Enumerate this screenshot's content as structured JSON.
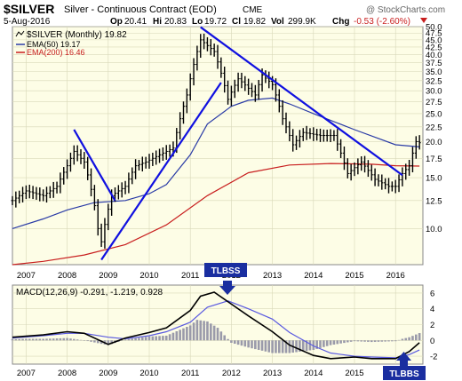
{
  "header": {
    "symbol": "$SILVER",
    "description": "Silver - Continuous Contract (EOD)",
    "exchange": "CME",
    "watermark": "@ StockCharts.com",
    "date": "5-Aug-2016",
    "ohlc": {
      "open_label": "Op",
      "open": "20.41",
      "high_label": "Hi",
      "high": "20.83",
      "low_label": "Lo",
      "low": "19.72",
      "close_label": "Cl",
      "close": "19.82",
      "vol_label": "Vol",
      "vol": "299.9K",
      "chg_label": "Chg",
      "chg": "-0.53 (-2.60%)"
    }
  },
  "colors": {
    "price": "#000000",
    "ema50": "#2a3ba6",
    "ema200": "#c81e1e",
    "trendline": "#1010e0",
    "macd": "#000000",
    "signal": "#5a5ae0",
    "histogram": "#9a9aaa",
    "panel_bg": "#fdfde6",
    "grid": "#d8d8b8",
    "annotation_bg": "#1a2ea0",
    "chg_negative": "#c81e1e"
  },
  "annotations": [
    {
      "label": "TLBSS",
      "target": "macd-peak-2011"
    },
    {
      "label": "TLBBS",
      "target": "macd-low-2016"
    }
  ],
  "chart_data": [
    {
      "type": "line",
      "title": "$SILVER (Monthly) 19.82",
      "interval": "Monthly",
      "y_scale": "log",
      "ylim": [
        7.5,
        50.0
      ],
      "x_ticks": [
        "2007",
        "2008",
        "2009",
        "2010",
        "2011",
        "2012",
        "2013",
        "2014",
        "2015",
        "2016"
      ],
      "y_ticks": [
        "10.0",
        "12.5",
        "15.0",
        "17.5",
        "20.0",
        "22.5",
        "25.0",
        "27.5",
        "30.0",
        "32.5",
        "35.0",
        "37.5",
        "40.0",
        "42.5",
        "45.0",
        "47.5",
        "50.0"
      ],
      "legend_position": "top-left",
      "grid": true,
      "series": [
        {
          "name": "$SILVER (Monthly) 19.82",
          "style": "ohlc-bars",
          "x": [
            "2006-09",
            "2007-01",
            "2007-06",
            "2007-10",
            "2008-01",
            "2008-03",
            "2008-06",
            "2008-09",
            "2008-10",
            "2008-11",
            "2009-02",
            "2009-06",
            "2009-09",
            "2009-12",
            "2010-04",
            "2010-08",
            "2010-12",
            "2011-04",
            "2011-08",
            "2011-12",
            "2012-03",
            "2012-08",
            "2012-10",
            "2013-01",
            "2013-04",
            "2013-07",
            "2013-10",
            "2014-03",
            "2014-07",
            "2014-11",
            "2015-03",
            "2015-07",
            "2015-11",
            "2016-01",
            "2016-03",
            "2016-05",
            "2016-07",
            "2016-08"
          ],
          "values": [
            12.5,
            13.5,
            13.0,
            14.0,
            16.5,
            18.5,
            17.0,
            12.0,
            10.0,
            9.0,
            13.0,
            14.0,
            16.5,
            17.0,
            18.0,
            19.0,
            29.0,
            45.0,
            41.0,
            28.0,
            33.0,
            29.0,
            34.0,
            31.5,
            24.0,
            19.5,
            21.5,
            21.0,
            21.0,
            15.5,
            17.0,
            14.8,
            14.0,
            14.0,
            15.5,
            16.5,
            20.0,
            19.82
          ]
        },
        {
          "name": "EMA(50) 19.17",
          "x": [
            "2006-09",
            "2007-06",
            "2008-01",
            "2008-09",
            "2009-06",
            "2010-01",
            "2010-06",
            "2011-01",
            "2011-06",
            "2012-01",
            "2012-06",
            "2013-01",
            "2013-06",
            "2014-01",
            "2015-01",
            "2016-01",
            "2016-08"
          ],
          "values": [
            10.0,
            10.8,
            11.6,
            12.3,
            12.5,
            13.2,
            14.2,
            18.0,
            23.0,
            26.5,
            27.8,
            28.3,
            27.0,
            25.0,
            22.0,
            19.5,
            19.17
          ]
        },
        {
          "name": "EMA(200) 16.46",
          "x": [
            "2006-09",
            "2007-06",
            "2008-06",
            "2009-06",
            "2010-06",
            "2011-06",
            "2012-06",
            "2013-06",
            "2014-06",
            "2015-06",
            "2016-01",
            "2016-08"
          ],
          "values": [
            7.5,
            7.7,
            8.1,
            8.8,
            10.3,
            13.0,
            15.6,
            16.6,
            16.8,
            16.7,
            16.5,
            16.46
          ]
        }
      ],
      "trendlines": [
        {
          "from": [
            "2008-03",
            22.0
          ],
          "to": [
            "2009-03",
            12.5
          ]
        },
        {
          "from": [
            "2008-11",
            7.8
          ],
          "to": [
            "2011-10",
            32.0
          ]
        },
        {
          "from": [
            "2011-04",
            49.8
          ],
          "to": [
            "2016-03",
            15.3
          ]
        }
      ]
    },
    {
      "type": "line",
      "title": "MACD(12,26,9) -0.291, -1.219, 0.928",
      "ylim": [
        -3,
        7
      ],
      "y_ticks": [
        "-2",
        "0",
        "2",
        "4",
        "6"
      ],
      "x_ticks": [
        "2007",
        "2008",
        "2009",
        "2010",
        "2011",
        "2012",
        "2013",
        "2014",
        "2015",
        "2016"
      ],
      "grid": true,
      "series": [
        {
          "name": "MACD",
          "x": [
            "2006-09",
            "2007-06",
            "2008-01",
            "2008-06",
            "2009-01",
            "2009-06",
            "2010-01",
            "2010-06",
            "2011-01",
            "2011-04",
            "2011-08",
            "2012-01",
            "2012-06",
            "2013-01",
            "2013-06",
            "2014-01",
            "2014-06",
            "2015-01",
            "2015-06",
            "2016-01",
            "2016-05",
            "2016-08"
          ],
          "values": [
            0.4,
            0.7,
            1.1,
            0.9,
            -0.5,
            0.3,
            1.0,
            1.6,
            3.8,
            5.6,
            6.1,
            4.6,
            3.1,
            1.1,
            -0.6,
            -1.9,
            -2.3,
            -2.1,
            -2.3,
            -2.3,
            -1.4,
            -0.291
          ]
        },
        {
          "name": "Signal",
          "x": [
            "2006-09",
            "2007-06",
            "2008-01",
            "2008-06",
            "2009-01",
            "2009-06",
            "2010-01",
            "2010-06",
            "2011-01",
            "2011-06",
            "2011-12",
            "2012-06",
            "2013-01",
            "2013-06",
            "2014-01",
            "2014-06",
            "2015-01",
            "2015-06",
            "2016-01",
            "2016-05",
            "2016-08"
          ],
          "values": [
            0.3,
            0.6,
            0.9,
            0.9,
            0.4,
            0.2,
            0.6,
            1.1,
            2.3,
            4.2,
            5.0,
            4.0,
            2.7,
            1.0,
            -0.7,
            -1.6,
            -2.0,
            -2.1,
            -2.2,
            -1.8,
            -1.219
          ]
        },
        {
          "name": "Histogram",
          "style": "bars",
          "x": [
            "2006-09",
            "2007-01",
            "2007-06",
            "2008-01",
            "2008-06",
            "2009-01",
            "2009-06",
            "2010-01",
            "2010-06",
            "2011-01",
            "2011-03",
            "2011-06",
            "2011-09",
            "2012-01",
            "2012-06",
            "2013-01",
            "2013-06",
            "2014-01",
            "2014-06",
            "2015-01",
            "2015-06",
            "2016-01",
            "2016-03",
            "2016-05",
            "2016-08"
          ],
          "values": [
            0.15,
            0.2,
            0.2,
            0.3,
            0.0,
            -0.6,
            0.1,
            0.5,
            0.6,
            1.9,
            2.6,
            2.4,
            1.6,
            -0.3,
            -0.9,
            -1.6,
            -1.6,
            -1.2,
            -0.6,
            -0.1,
            -0.2,
            -0.1,
            0.2,
            0.4,
            0.928
          ]
        }
      ]
    }
  ]
}
